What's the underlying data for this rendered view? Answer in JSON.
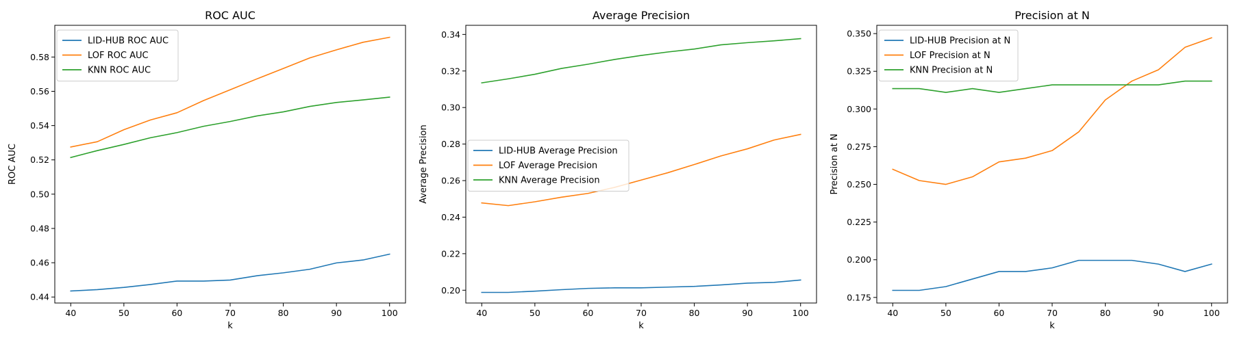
{
  "chart_data": [
    {
      "type": "line",
      "title": "ROC AUC",
      "xlabel": "k",
      "ylabel": "ROC AUC",
      "xlim": [
        37,
        103
      ],
      "ylim": [
        0.4365,
        0.5985
      ],
      "xticks": [
        40,
        50,
        60,
        70,
        80,
        90,
        100
      ],
      "yticks": [
        0.44,
        0.46,
        0.48,
        0.5,
        0.52,
        0.54,
        0.56,
        0.58
      ],
      "tick_decimals": 2,
      "legend_position": "upper left",
      "x": [
        40,
        45,
        50,
        55,
        60,
        65,
        70,
        75,
        80,
        85,
        90,
        95,
        100
      ],
      "series": [
        {
          "name": "LID-HUB ROC AUC",
          "color": "#1f77b4",
          "values": [
            0.4435,
            0.4443,
            0.4456,
            0.4473,
            0.4493,
            0.4493,
            0.4499,
            0.4524,
            0.4541,
            0.4562,
            0.4599,
            0.4616,
            0.465
          ]
        },
        {
          "name": "LOF ROC AUC",
          "color": "#ff7f0e",
          "values": [
            0.5275,
            0.5306,
            0.5376,
            0.5433,
            0.5475,
            0.5546,
            0.5609,
            0.5672,
            0.5733,
            0.5795,
            0.5842,
            0.5886,
            0.5915
          ]
        },
        {
          "name": "KNN ROC AUC",
          "color": "#2ca02c",
          "values": [
            0.5214,
            0.5254,
            0.529,
            0.5329,
            0.5359,
            0.5396,
            0.5424,
            0.5456,
            0.548,
            0.5512,
            0.5535,
            0.555,
            0.5566
          ]
        }
      ]
    },
    {
      "type": "line",
      "title": "Average Precision",
      "xlabel": "k",
      "ylabel": "Average Precision",
      "xlim": [
        37,
        103
      ],
      "ylim": [
        0.193,
        0.345
      ],
      "xticks": [
        40,
        50,
        60,
        70,
        80,
        90,
        100
      ],
      "yticks": [
        0.2,
        0.22,
        0.24,
        0.26,
        0.28,
        0.3,
        0.32,
        0.34
      ],
      "tick_decimals": 2,
      "legend_position": "center left",
      "x": [
        40,
        45,
        50,
        55,
        60,
        65,
        70,
        75,
        80,
        85,
        90,
        95,
        100
      ],
      "series": [
        {
          "name": "LID-HUB Average Precision",
          "color": "#1f77b4",
          "values": [
            0.1988,
            0.1988,
            0.1995,
            0.2003,
            0.201,
            0.2013,
            0.2013,
            0.2017,
            0.2021,
            0.2029,
            0.2039,
            0.2043,
            0.2056
          ]
        },
        {
          "name": "LOF Average Precision",
          "color": "#ff7f0e",
          "values": [
            0.2478,
            0.2463,
            0.2484,
            0.2509,
            0.253,
            0.2563,
            0.2603,
            0.2643,
            0.2688,
            0.2735,
            0.2774,
            0.2822,
            0.2853
          ]
        },
        {
          "name": "KNN Average Precision",
          "color": "#2ca02c",
          "values": [
            0.3135,
            0.3157,
            0.3182,
            0.3214,
            0.3237,
            0.3263,
            0.3285,
            0.3304,
            0.332,
            0.3343,
            0.3355,
            0.3365,
            0.3377
          ]
        }
      ]
    },
    {
      "type": "line",
      "title": "Precision at N",
      "xlabel": "k",
      "ylabel": "Precision at N",
      "xlim": [
        37,
        103
      ],
      "ylim": [
        0.1713,
        0.3555
      ],
      "xticks": [
        40,
        50,
        60,
        70,
        80,
        90,
        100
      ],
      "yticks": [
        0.175,
        0.2,
        0.225,
        0.25,
        0.275,
        0.3,
        0.325,
        0.35
      ],
      "tick_decimals": 3,
      "legend_position": "upper left",
      "x": [
        40,
        45,
        50,
        55,
        60,
        65,
        70,
        75,
        80,
        85,
        90,
        95,
        100
      ],
      "series": [
        {
          "name": "LID-HUB Precision at N",
          "color": "#1f77b4",
          "values": [
            0.1797,
            0.1797,
            0.1822,
            0.1872,
            0.1922,
            0.1922,
            0.1946,
            0.1996,
            0.1996,
            0.1996,
            0.1971,
            0.1922,
            0.1971
          ]
        },
        {
          "name": "LOF Precision at N",
          "color": "#ff7f0e",
          "values": [
            0.26,
            0.2525,
            0.25,
            0.255,
            0.2649,
            0.2674,
            0.2724,
            0.2848,
            0.306,
            0.3185,
            0.326,
            0.3409,
            0.3472
          ]
        },
        {
          "name": "KNN Precision at N",
          "color": "#2ca02c",
          "values": [
            0.3135,
            0.3135,
            0.311,
            0.3135,
            0.311,
            0.3135,
            0.316,
            0.316,
            0.316,
            0.316,
            0.316,
            0.3185,
            0.3185
          ]
        }
      ]
    }
  ]
}
